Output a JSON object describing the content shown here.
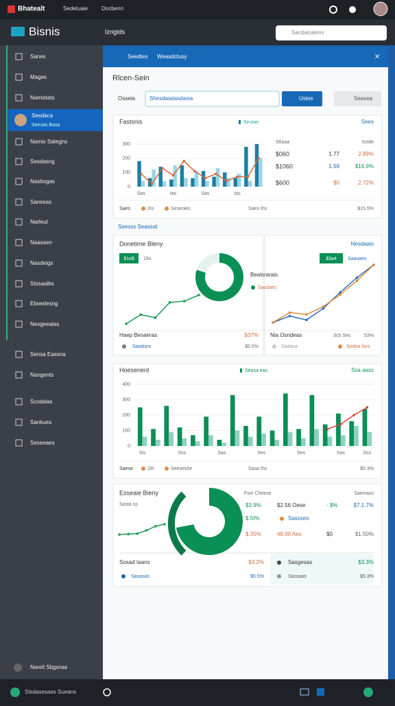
{
  "topbar": {
    "brand": "Bhatealt",
    "links": [
      "Sedetuaie",
      "Docbenn"
    ]
  },
  "appbar": {
    "logo": "Bisnis",
    "menu": "Izrigtds",
    "search": "Sacdalcalens"
  },
  "sidebar": {
    "items": [
      {
        "label": "Sanes"
      },
      {
        "label": "Mages"
      },
      {
        "label": "Namistats"
      },
      {
        "label": "Sesdaca",
        "sublabel": "Seesas Basa",
        "active": true
      },
      {
        "label": "Namis Sategns"
      },
      {
        "label": "Sesdasng"
      },
      {
        "label": "Nasbogas"
      },
      {
        "label": "Sanesas"
      },
      {
        "label": "Narleut"
      },
      {
        "label": "Naasaen"
      },
      {
        "label": "Nasdeigs"
      },
      {
        "label": "Stssaalbs"
      },
      {
        "label": "Eboedesng"
      },
      {
        "label": "Nesgeealas"
      },
      {
        "label": "Sensa Eassna"
      },
      {
        "label": "Nangents"
      },
      {
        "label": "Scosbias"
      },
      {
        "label": "Sankues"
      },
      {
        "label": "Seseeaes"
      }
    ],
    "footer": "Nareil Sbgsnas"
  },
  "header": {
    "tabs": [
      "Seedtes",
      "Weasdctusy"
    ]
  },
  "page": {
    "title": "Rlcen-Sein",
    "filter_label": "Osseia",
    "filter_value": "Shesdaiatasdasia",
    "primary_button": "Ustes",
    "secondary_button": "Seasea",
    "section_label": "Seesss Seassat"
  },
  "cards": [
    {
      "title": "Fastsnis",
      "legend": "Seutae",
      "link": "Sees",
      "chart": {
        "type": "bar",
        "categories": [
          "Sas",
          null,
          null,
          "Ias",
          null,
          null,
          "Sas",
          null,
          null,
          "Ias",
          null,
          null
        ],
        "series": [
          {
            "color": "#1b7fa3",
            "values": [
              180,
              60,
              140,
              50,
              150,
              60,
              110,
              70,
              100,
              60,
              280,
              300
            ]
          },
          {
            "color": "#9fd3e6",
            "values": [
              40,
              120,
              40,
              150,
              60,
              110,
              40,
              130,
              60,
              90,
              40,
              200
            ]
          },
          {
            "color": "#d2693c",
            "type": "line",
            "values": [
              90,
              20,
              130,
              80,
              180,
              110,
              60,
              90,
              40,
              70,
              70,
              200
            ]
          }
        ],
        "ylim": [
          0,
          300
        ],
        "yticks": [
          0,
          100,
          200,
          300
        ]
      },
      "stats": {
        "header": [
          "S6aaa",
          "Sstde"
        ],
        "rows": [
          [
            "$060",
            "1.77",
            "2.89%"
          ],
          [
            "$1060",
            "1.59",
            "$16.9%"
          ],
          [
            "$600",
            "$0",
            "2.72%"
          ]
        ]
      },
      "footer": [
        "Saes",
        "2Is",
        "Seseoies",
        "Saes Ihs",
        "$15.5%"
      ]
    },
    {
      "title": "Donetime Bleny",
      "badge": "$1e$",
      "badge_note": "Dlo",
      "donut": {
        "values": [
          80,
          20
        ],
        "colors": [
          "#0a8f55",
          "#e6f2ec"
        ]
      },
      "donut_title": "Bealsrarais",
      "donut_note": "Sacdaes",
      "line": {
        "color": "#1a9a55",
        "values": [
          5,
          20,
          15,
          40,
          42,
          52
        ]
      },
      "right": {
        "link": "Nesdaais",
        "badge": "$3a4",
        "badge_note": "Saasaes",
        "lines": [
          {
            "color": "#2a6ebb",
            "values": [
              8,
              18,
              12,
              30,
              55,
              78,
              98
            ]
          },
          {
            "color": "#d98a3a",
            "values": [
              4,
              14,
              12,
              20,
              32,
              46,
              62
            ]
          }
        ]
      },
      "footer_left": [
        [
          "Haep Besaeras",
          "$37%"
        ],
        [
          "Sasdons",
          "$5.5%"
        ]
      ],
      "footer_right": [
        [
          "Nia Osndeas",
          "3s5 Ses",
          "53%"
        ],
        [
          "Sadaca",
          "Sedea Ses"
        ]
      ]
    },
    {
      "title": "Hoesenent",
      "legend": "Seasa eas",
      "link": "Ssa aass",
      "chart": {
        "type": "bar",
        "categories": [
          "Sis",
          null,
          null,
          "Sss",
          null,
          null,
          "Sas",
          null,
          null,
          "Ses",
          null,
          null,
          "Ses",
          null,
          null,
          "Sas",
          null,
          "Sss"
        ],
        "series": [
          {
            "color": "#0a8f55",
            "values": [
              250,
              110,
              260,
              120,
              70,
              190,
              40,
              330,
              130,
              190,
              100,
              340,
              110,
              330,
              140,
              210,
              160,
              240
            ]
          },
          {
            "color": "#8fd0c0",
            "values": [
              60,
              40,
              90,
              50,
              30,
              70,
              20,
              100,
              60,
              80,
              40,
              90,
              50,
              110,
              60,
              70,
              130,
              90
            ]
          },
          {
            "color": "#d9463a",
            "type": "line",
            "values": [
              null,
              null,
              null,
              null,
              null,
              null,
              null,
              null,
              null,
              null,
              null,
              null,
              null,
              null,
              110,
              140,
              200,
              250
            ]
          }
        ],
        "ylim": [
          0,
          400
        ],
        "yticks": [
          0,
          100,
          200,
          300,
          400
        ]
      },
      "footer": [
        "Saese",
        "2Ih",
        "Seeseshe",
        "Sasa Ihs",
        "$5.3%"
      ]
    },
    {
      "title": "Esseaie Bieny",
      "subtitle": "Sasta ss",
      "donut": {
        "values": [
          72,
          28
        ],
        "colors": [
          "#0a8f55",
          "#ffffff"
        ]
      },
      "line": {
        "color": "#1a9a55",
        "values": [
          20,
          21,
          22,
          30,
          40,
          45
        ]
      },
      "table": {
        "header": [
          "Fsm Cheese",
          "Saeniass"
        ],
        "rows": [
          [
            "$3.9%",
            "$2.56 Oese",
            "- $%",
            "$7.1.7%"
          ],
          [
            "$.5I%",
            "Sassseo"
          ],
          [
            "$.35%",
            "48.00 Aes",
            "$0",
            "$1.50%"
          ]
        ]
      },
      "footer": [
        [
          "Sosad Iaans",
          "$3.2%"
        ],
        [
          "Sasasas",
          "$5.5%"
        ],
        [
          "Sasgesas",
          "$3.3%"
        ],
        [
          "Sassaas",
          "$5.3%"
        ]
      ]
    }
  ],
  "statusbar": {
    "text": "Stsdasesaes Sueans"
  }
}
